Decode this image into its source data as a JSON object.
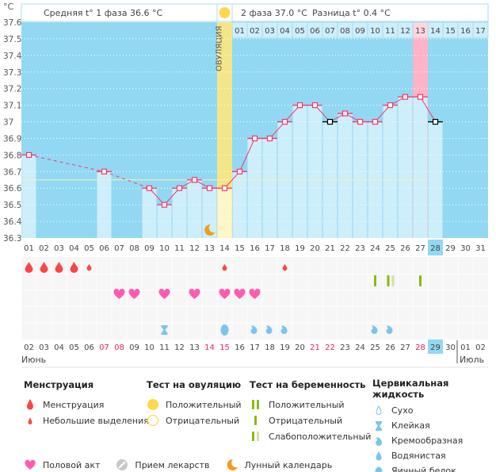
{
  "header": {
    "unit": "°C",
    "phase1_avg": "Средняя t° 1 фаза 36.6 °C",
    "phase2_avg": "2 фаза 37.0 °C",
    "difference": "Разница t° 0.4 °C",
    "ovulation_label": "ОВУЛЯЦИЯ"
  },
  "chart_data": {
    "type": "line",
    "ylabel": "°C",
    "ylim": [
      36.3,
      37.6
    ],
    "y_ticks": [
      "37.6",
      "37.5",
      "37.4",
      "37.3",
      "37.2",
      "37.1",
      "37",
      "36.9",
      "36.8",
      "36.7",
      "36.6",
      "36.5",
      "36.4",
      "36.3"
    ],
    "grid": true,
    "cycle_days": [
      "01",
      "02",
      "03",
      "04",
      "05",
      "06",
      "07",
      "08",
      "09",
      "10",
      "11",
      "12",
      "13",
      "14",
      "15",
      "16",
      "17",
      "18",
      "19",
      "20",
      "21",
      "22",
      "23",
      "24",
      "25",
      "26",
      "27",
      "28",
      "29",
      "30",
      "31"
    ],
    "current_cycle_day": "28",
    "temperatures": [
      36.8,
      null,
      null,
      null,
      null,
      36.7,
      null,
      null,
      36.6,
      36.5,
      36.6,
      36.65,
      36.6,
      36.6,
      36.7,
      36.9,
      36.9,
      37.0,
      37.1,
      37.1,
      37.0,
      37.05,
      37.0,
      37.0,
      37.1,
      37.15,
      37.15,
      37.0,
      null,
      null,
      null
    ],
    "excluded_days": [
      21,
      28
    ],
    "ovulation_day": 14,
    "cover_line": 36.65,
    "phase2_days": [
      "01",
      "02",
      "03",
      "04",
      "05",
      "06",
      "07",
      "08",
      "09",
      "10",
      "11",
      "12",
      "13",
      "14",
      "15",
      "16",
      "17"
    ],
    "phase2_highlight": "13",
    "moon_day": 13,
    "dates": [
      "02",
      "03",
      "04",
      "05",
      "06",
      "07",
      "08",
      "09",
      "10",
      "11",
      "12",
      "13",
      "14",
      "15",
      "16",
      "17",
      "18",
      "19",
      "20",
      "21",
      "22",
      "23",
      "24",
      "25",
      "26",
      "27",
      "28",
      "29",
      "30",
      "01",
      "02"
    ],
    "red_dates": [
      "07",
      "08",
      "14",
      "15",
      "21",
      "22",
      "28"
    ],
    "today_date": "29",
    "months": {
      "start": "Июнь",
      "next": "Июль"
    },
    "events": {
      "menstruation_heavy": [
        1,
        2,
        3,
        4
      ],
      "menstruation_light": [
        5,
        14,
        18
      ],
      "pregnancy_negative": [
        24,
        27
      ],
      "pregnancy_weak": [
        25
      ],
      "intercourse": [
        7,
        8,
        10,
        12,
        14,
        15,
        16
      ],
      "cervical_sticky": [
        10
      ],
      "cervical_eggwhite": [
        14
      ],
      "cervical_creamy": [
        16,
        17,
        18,
        24,
        25
      ]
    },
    "colors": {
      "bg": "#92d8f2",
      "bar": "#cdeefb",
      "line": "#ff3366",
      "ovulation": "#f4e589",
      "highlight": "#ffb3c6",
      "menstruation": "#ff4444",
      "heart": "#ff5cb0",
      "test": "#8cb811",
      "test_weak": "#cfe3a0",
      "fluid": "#7cc4ee"
    }
  },
  "legend": {
    "menstruation": {
      "title": "Менструация",
      "items": [
        "Менструация",
        "Небольшие выделения"
      ]
    },
    "ovulation_test": {
      "title": "Тест на овуляцию",
      "items": [
        "Положительный",
        "Отрицательный"
      ]
    },
    "pregnancy_test": {
      "title": "Тест на беременность",
      "items": [
        "Положительный",
        "Отрицательный",
        "Слабоположительный"
      ]
    },
    "cervical": {
      "title": "Цервикальная жидкость",
      "items": [
        "Сухо",
        "Клейкая",
        "Кремообразная",
        "Водянистая",
        "Яичный белок"
      ]
    },
    "bottom": [
      "Половой акт",
      "Прием лекарств",
      "Лунный календарь"
    ]
  }
}
